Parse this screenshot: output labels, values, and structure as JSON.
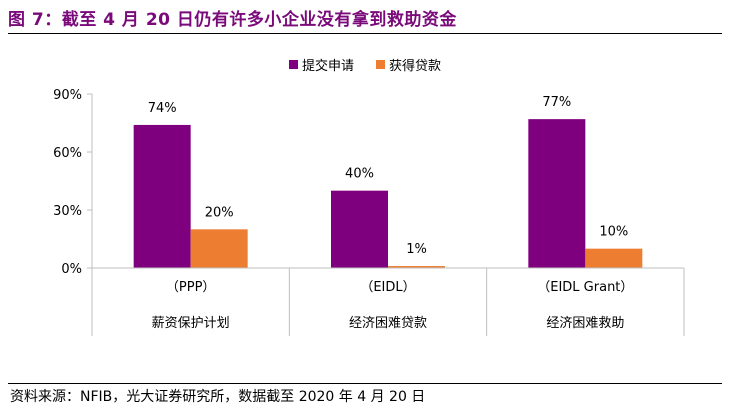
{
  "title": "图 7：截至 4 月 20 日仍有许多小企业没有拿到救助资金",
  "source": "资料来源：NFIB，光大证券研究所，数据截至 2020 年 4 月 20 日",
  "colors": {
    "title": "#7a0a7a",
    "series_1": "#7f007f",
    "series_2": "#ed7d31"
  },
  "chart_data": {
    "type": "bar",
    "categories": [
      {
        "code": "（PPP）",
        "name": "薪资保护计划"
      },
      {
        "code": "（EIDL）",
        "name": "经济困难贷款"
      },
      {
        "code": "（EIDL Grant）",
        "name": "经济困难救助"
      }
    ],
    "series": [
      {
        "name": "提交申请",
        "values": [
          74,
          40,
          77
        ],
        "labels": [
          "74%",
          "40%",
          "77%"
        ]
      },
      {
        "name": "获得贷款",
        "values": [
          20,
          1,
          10
        ],
        "labels": [
          "20%",
          "1%",
          "10%"
        ]
      }
    ],
    "ylim": [
      0,
      90
    ],
    "yticks": [
      0,
      30,
      60,
      90
    ],
    "ytick_labels": [
      "0%",
      "30%",
      "60%",
      "90%"
    ],
    "legend_position": "top-center",
    "grid": false
  }
}
